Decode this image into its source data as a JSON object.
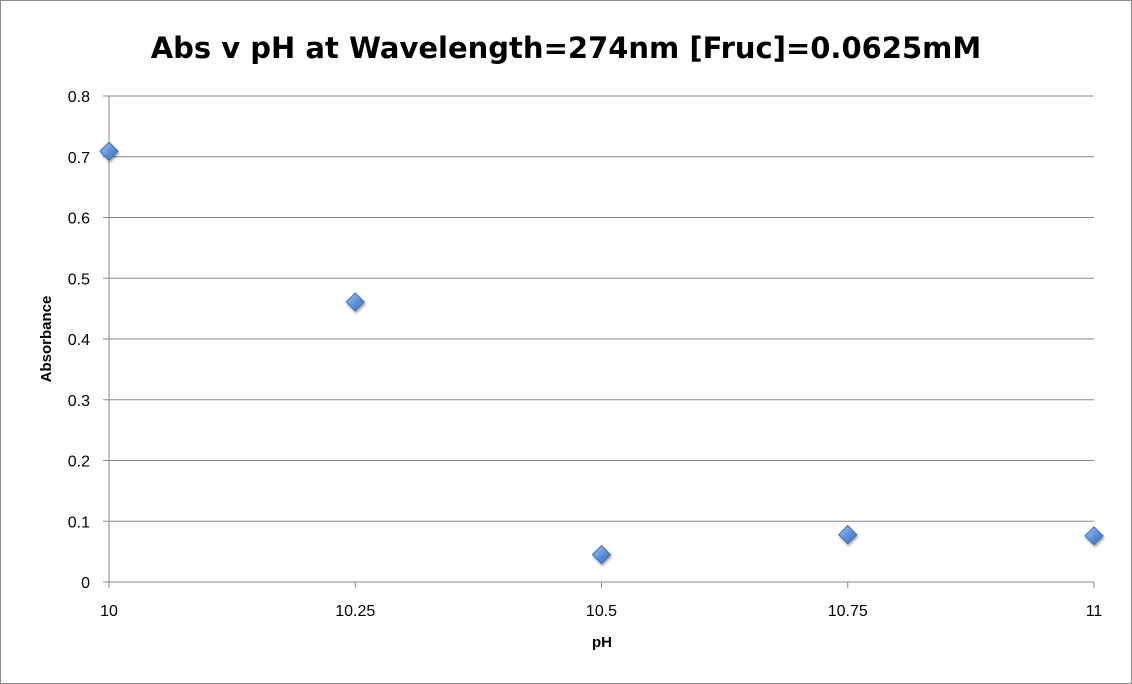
{
  "chart_data": {
    "type": "scatter",
    "title": "Abs v pH at Wavelength=274nm [Fruc]=0.0625mM",
    "xlabel": "pH",
    "ylabel": "Absorbance",
    "xlim": [
      10,
      11
    ],
    "ylim": [
      0,
      0.8
    ],
    "x_ticks": [
      "10",
      "10.25",
      "10.5",
      "10.75",
      "11"
    ],
    "y_ticks": [
      "0",
      "0.1",
      "0.2",
      "0.3",
      "0.4",
      "0.5",
      "0.6",
      "0.7",
      "0.8"
    ],
    "grid": true,
    "legend": "none",
    "marker": "diamond",
    "marker_color": "#5b8fd8",
    "series": [
      {
        "x": [
          10,
          10.25,
          10.5,
          10.75,
          11
        ],
        "y": [
          0.709,
          0.461,
          0.045,
          0.078,
          0.076
        ]
      }
    ]
  }
}
